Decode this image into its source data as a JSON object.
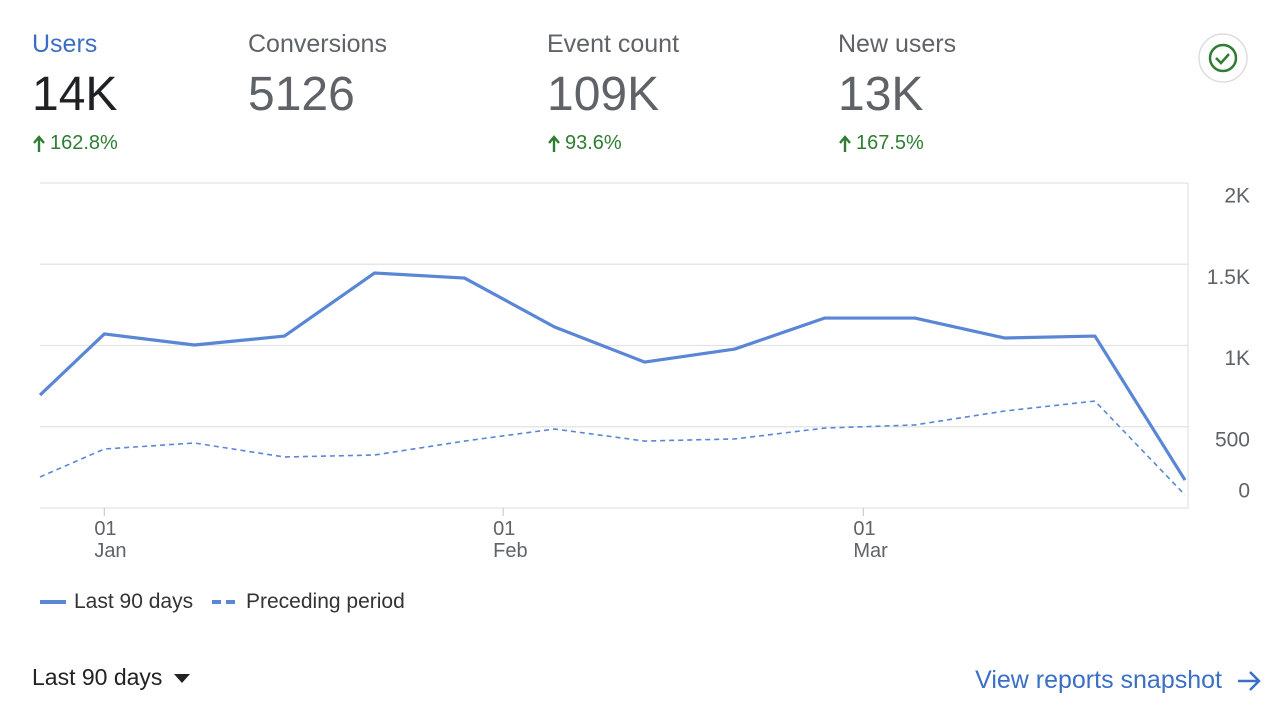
{
  "metrics": [
    {
      "label": "Users",
      "value": "14K",
      "change": "162.8%"
    },
    {
      "label": "Conversions",
      "value": "5126"
    },
    {
      "label": "Event count",
      "value": "109K",
      "change": "93.6%"
    },
    {
      "label": "New users",
      "value": "13K",
      "change": "167.5%"
    }
  ],
  "chart_data": {
    "type": "line",
    "x": [
      -5,
      0,
      7,
      14,
      21,
      28,
      35,
      42,
      49,
      56,
      63,
      70,
      77,
      84
    ],
    "series": [
      {
        "name": "Last 90 days",
        "color": "#5a86d6",
        "style": "solid",
        "values": [
          695,
          1071,
          1003,
          1058,
          1446,
          1415,
          1114,
          898,
          978,
          1169,
          1169,
          1046,
          1058,
          172
        ]
      },
      {
        "name": "Preceding period",
        "color": "#5a86d6",
        "style": "dashed",
        "values": [
          191,
          363,
          400,
          314,
          326,
          412,
          486,
          412,
          425,
          492,
          511,
          597,
          658,
          80
        ]
      }
    ],
    "xlim": [
      -5,
      84
    ],
    "xticks": [
      {
        "value": 0,
        "label": "01\nJan"
      },
      {
        "value": 31,
        "label": "01\nFeb"
      },
      {
        "value": 59,
        "label": "01\nMar"
      }
    ],
    "ylim": [
      0,
      2000
    ],
    "yticks": [
      0,
      500,
      {
        "value": 1000,
        "label": "1K"
      },
      {
        "value": 1500,
        "label": "1.5K"
      },
      {
        "value": 2000,
        "label": "2K"
      }
    ],
    "grid": true
  },
  "footer": {
    "range": "Last 90 days",
    "link": "View reports snapshot"
  }
}
